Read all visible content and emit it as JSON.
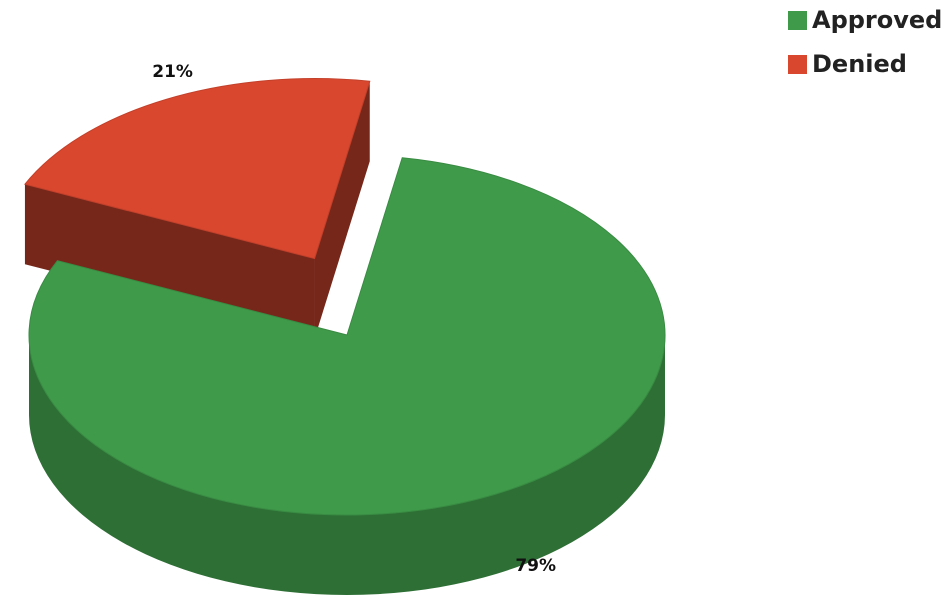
{
  "chart_data": {
    "type": "pie",
    "three_d": true,
    "categories": [
      "Approved",
      "Denied"
    ],
    "values": [
      79,
      21
    ],
    "value_labels": [
      "79%",
      "21%"
    ],
    "colors": [
      "#3f9a4a",
      "#d9472f"
    ],
    "exploded": [
      false,
      true
    ],
    "legend": "top-right"
  }
}
